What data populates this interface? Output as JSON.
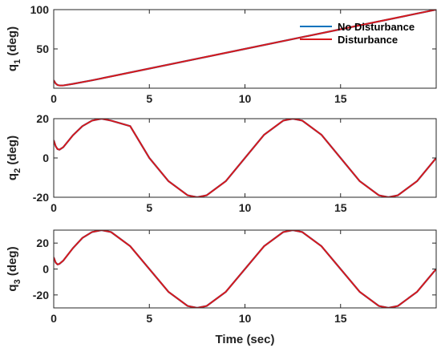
{
  "chart_data": [
    {
      "type": "line",
      "ylabel": "q",
      "ylabel_sub": "1",
      "ylabel_unit": " (deg)",
      "xlim": [
        0,
        20
      ],
      "ylim": [
        0,
        100
      ],
      "xticks": [
        0,
        5,
        10,
        15
      ],
      "yticks": [
        50,
        100
      ],
      "grid": false,
      "legend": {
        "placement": "top-right",
        "entries": [
          {
            "name": "No Disturbance",
            "color": "#0072BD"
          },
          {
            "name": "Disturbance",
            "color": "#D7191C"
          }
        ]
      },
      "series": [
        {
          "name": "No Disturbance",
          "color": "#0072BD",
          "x": [
            0,
            0.1,
            0.2,
            0.3,
            0.5,
            1,
            2,
            5,
            10,
            15,
            20
          ],
          "y": [
            10,
            6,
            4,
            3.5,
            3.5,
            5.5,
            10,
            25,
            50,
            75,
            100
          ]
        },
        {
          "name": "Disturbance",
          "color": "#D7191C",
          "x": [
            0,
            0.1,
            0.2,
            0.3,
            0.5,
            1,
            2,
            5,
            10,
            15,
            20
          ],
          "y": [
            10,
            6,
            4,
            3.5,
            3.5,
            5.5,
            10,
            25,
            50,
            75,
            100
          ]
        }
      ]
    },
    {
      "type": "line",
      "ylabel": "q",
      "ylabel_sub": "2",
      "ylabel_unit": " (deg)",
      "xlim": [
        0,
        20
      ],
      "ylim": [
        -20,
        20
      ],
      "xticks": [
        0,
        5,
        10,
        15
      ],
      "yticks": [
        -20,
        0,
        20
      ],
      "grid": false,
      "series": [
        {
          "name": "No Disturbance",
          "color": "#0072BD",
          "x": [
            0,
            0.1,
            0.2,
            0.3,
            0.5,
            1,
            1.5,
            2,
            2.5,
            3,
            4,
            5,
            6,
            7,
            7.5,
            8,
            9,
            10,
            11,
            12,
            12.5,
            13,
            14,
            15,
            16,
            17,
            17.5,
            18,
            19,
            20
          ],
          "y": [
            9,
            6,
            4.5,
            4.2,
            5.5,
            11.5,
            16.2,
            19,
            20,
            19,
            16.2,
            0,
            -11.8,
            -19,
            -20,
            -19,
            -11.8,
            0,
            11.8,
            19,
            20,
            19,
            11.8,
            0,
            -11.8,
            -19,
            -20,
            -19,
            -11.8,
            0
          ]
        },
        {
          "name": "Disturbance",
          "color": "#D7191C",
          "x": [
            0,
            0.1,
            0.2,
            0.3,
            0.5,
            1,
            1.5,
            2,
            2.5,
            3,
            4,
            5,
            6,
            7,
            7.5,
            8,
            9,
            10,
            11,
            12,
            12.5,
            13,
            14,
            15,
            16,
            17,
            17.5,
            18,
            19,
            20
          ],
          "y": [
            9,
            6,
            4.5,
            4.2,
            5.5,
            11.5,
            16.2,
            19,
            20,
            19,
            16.2,
            0,
            -11.8,
            -19,
            -20,
            -19,
            -11.8,
            0,
            11.8,
            19,
            20,
            19,
            11.8,
            0,
            -11.8,
            -19,
            -20,
            -19,
            -11.8,
            0
          ]
        }
      ]
    },
    {
      "type": "line",
      "ylabel": "q",
      "ylabel_sub": "3",
      "ylabel_unit": " (deg)",
      "xlabel": "Time (sec)",
      "xlim": [
        0,
        20
      ],
      "ylim": [
        -30,
        30
      ],
      "xticks": [
        0,
        5,
        10,
        15
      ],
      "yticks": [
        -20,
        0,
        20
      ],
      "grid": false,
      "series": [
        {
          "name": "No Disturbance",
          "color": "#0072BD",
          "x": [
            0,
            0.1,
            0.2,
            0.3,
            0.5,
            1,
            1.5,
            2,
            2.5,
            3,
            4,
            5,
            6,
            7,
            7.5,
            8,
            9,
            10,
            11,
            12,
            12.5,
            13,
            14,
            15,
            16,
            17,
            17.5,
            18,
            19,
            20
          ],
          "y": [
            9,
            5,
            3.5,
            4,
            6.5,
            16,
            24,
            28.5,
            30,
            28.5,
            17.6,
            0,
            -17.6,
            -28.5,
            -30,
            -28.5,
            -17.6,
            0,
            17.6,
            28.5,
            30,
            28.5,
            17.6,
            0,
            -17.6,
            -28.5,
            -30,
            -28.5,
            -17.6,
            0
          ]
        },
        {
          "name": "Disturbance",
          "color": "#D7191C",
          "x": [
            0,
            0.1,
            0.2,
            0.3,
            0.5,
            1,
            1.5,
            2,
            2.5,
            3,
            4,
            5,
            6,
            7,
            7.5,
            8,
            9,
            10,
            11,
            12,
            12.5,
            13,
            14,
            15,
            16,
            17,
            17.5,
            18,
            19,
            20
          ],
          "y": [
            9,
            5,
            3.5,
            4,
            6.5,
            16,
            24,
            28.5,
            30,
            28.5,
            17.6,
            0,
            -17.6,
            -28.5,
            -30,
            -28.5,
            -17.6,
            0,
            17.6,
            28.5,
            30,
            28.5,
            17.6,
            0,
            -17.6,
            -28.5,
            -30,
            -28.5,
            -17.6,
            0
          ]
        }
      ]
    }
  ]
}
